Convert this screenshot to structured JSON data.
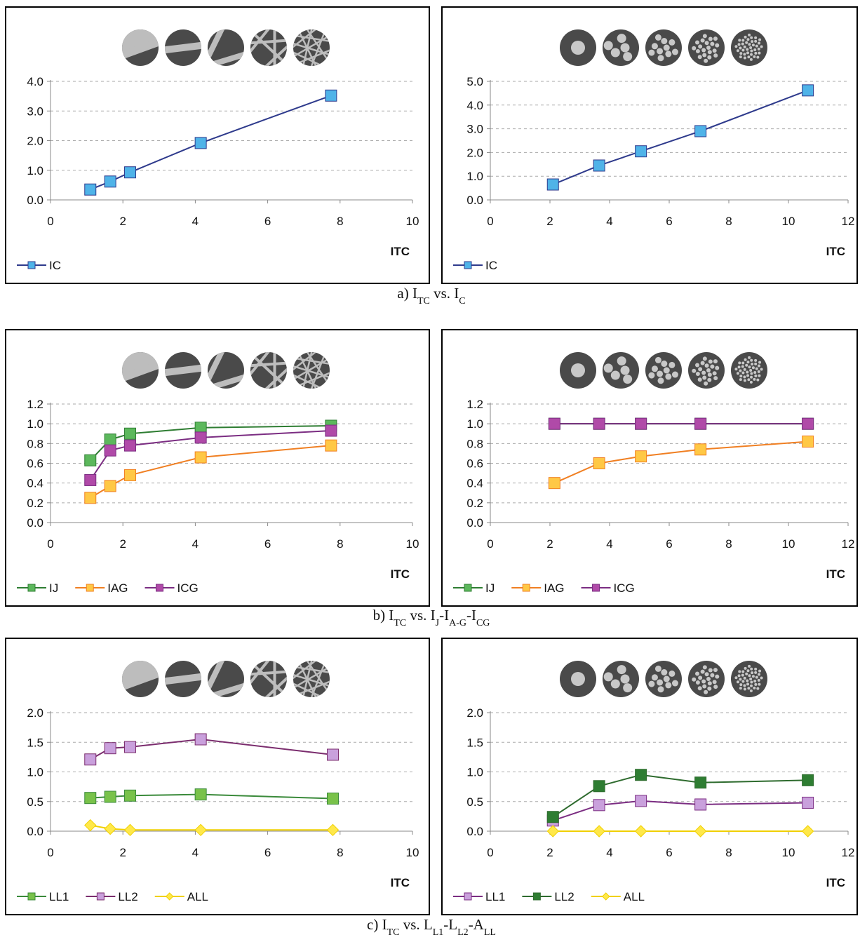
{
  "chart_data": [
    {
      "type": "line",
      "xlabel": "ITC",
      "x": [
        1.1,
        1.65,
        2.2,
        4.15,
        7.75
      ],
      "xlim": [
        0,
        10
      ],
      "xticks": [
        0,
        2,
        4,
        6,
        8,
        10
      ],
      "ylim": [
        0,
        4
      ],
      "yticks": [
        {
          "value": 0,
          "label": "0.0"
        },
        {
          "value": 1,
          "label": "1.0"
        },
        {
          "value": 2,
          "label": "2.0"
        },
        {
          "value": 3,
          "label": "3.0"
        },
        {
          "value": 4,
          "label": "4.0"
        }
      ],
      "grid": true,
      "series": [
        {
          "name": "IC",
          "color": "#2e3a8c",
          "marker_color": "#4fb3e8",
          "marker": "square",
          "values": [
            0.35,
            0.62,
            0.93,
            1.92,
            3.52
          ]
        }
      ]
    },
    {
      "type": "line",
      "xlabel": "ITC",
      "x": [
        2.1,
        3.65,
        5.05,
        7.05,
        10.65
      ],
      "xlim": [
        0,
        12
      ],
      "xticks": [
        0,
        2,
        4,
        6,
        8,
        10,
        12
      ],
      "ylim": [
        0,
        5
      ],
      "yticks": [
        {
          "value": 0,
          "label": "0.0"
        },
        {
          "value": 1,
          "label": "1.0"
        },
        {
          "value": 2,
          "label": "2.0"
        },
        {
          "value": 3,
          "label": "3.0"
        },
        {
          "value": 4,
          "label": "4.0"
        },
        {
          "value": 5,
          "label": "5.0"
        }
      ],
      "grid": true,
      "series": [
        {
          "name": "IC",
          "color": "#2e3a8c",
          "marker_color": "#4fb3e8",
          "marker": "square",
          "values": [
            0.65,
            1.45,
            2.05,
            2.9,
            4.62
          ]
        }
      ]
    },
    {
      "type": "line",
      "xlabel": "ITC",
      "x": [
        1.1,
        1.65,
        2.2,
        4.15,
        7.75
      ],
      "xlim": [
        0,
        10
      ],
      "xticks": [
        0,
        2,
        4,
        6,
        8,
        10
      ],
      "ylim": [
        0,
        1.2
      ],
      "yticks": [
        {
          "value": 0,
          "label": "0.0"
        },
        {
          "value": 0.2,
          "label": "0.2"
        },
        {
          "value": 0.4,
          "label": "0.4"
        },
        {
          "value": 0.6,
          "label": "0.6"
        },
        {
          "value": 0.8,
          "label": "0.8"
        },
        {
          "value": 1,
          "label": "1.0"
        },
        {
          "value": 1.2,
          "label": "1.2"
        }
      ],
      "grid": true,
      "series": [
        {
          "name": "IJ",
          "color": "#2e7d32",
          "marker_color": "#5cb85c",
          "marker": "square",
          "values": [
            0.63,
            0.84,
            0.9,
            0.96,
            0.98
          ]
        },
        {
          "name": "IAG",
          "color": "#f07f22",
          "marker_color": "#ffc845",
          "marker": "square",
          "values": [
            0.25,
            0.37,
            0.48,
            0.66,
            0.78
          ]
        },
        {
          "name": "ICG",
          "color": "#7b2d82",
          "marker_color": "#b04aa8",
          "marker": "square",
          "values": [
            0.43,
            0.73,
            0.78,
            0.86,
            0.93
          ]
        }
      ]
    },
    {
      "type": "line",
      "xlabel": "ITC",
      "x": [
        2.15,
        3.65,
        5.05,
        7.05,
        10.65
      ],
      "xlim": [
        0,
        12
      ],
      "xticks": [
        0,
        2,
        4,
        6,
        8,
        10,
        12
      ],
      "ylim": [
        0,
        1.2
      ],
      "yticks": [
        {
          "value": 0,
          "label": "0.0"
        },
        {
          "value": 0.2,
          "label": "0.2"
        },
        {
          "value": 0.4,
          "label": "0.4"
        },
        {
          "value": 0.6,
          "label": "0.6"
        },
        {
          "value": 0.8,
          "label": "0.8"
        },
        {
          "value": 1,
          "label": "1.0"
        },
        {
          "value": 1.2,
          "label": "1.2"
        }
      ],
      "grid": true,
      "series": [
        {
          "name": "IJ",
          "color": "#2e7d32",
          "marker_color": "#5cb85c",
          "marker": "square",
          "values": [
            1,
            1,
            1,
            1,
            1
          ]
        },
        {
          "name": "IAG",
          "color": "#f07f22",
          "marker_color": "#ffc845",
          "marker": "square",
          "values": [
            0.4,
            0.6,
            0.67,
            0.74,
            0.82
          ]
        },
        {
          "name": "ICG",
          "color": "#7b2d82",
          "marker_color": "#b04aa8",
          "marker": "square",
          "values": [
            1,
            1,
            1,
            1,
            1
          ]
        }
      ]
    },
    {
      "type": "line",
      "xlabel": "ITC",
      "x": [
        1.1,
        1.65,
        2.2,
        4.15,
        7.8
      ],
      "xlim": [
        0,
        10
      ],
      "xticks": [
        0,
        2,
        4,
        6,
        8,
        10
      ],
      "ylim": [
        0,
        2
      ],
      "yticks": [
        {
          "value": 0,
          "label": "0.0"
        },
        {
          "value": 0.5,
          "label": "0.5"
        },
        {
          "value": 1,
          "label": "1.0"
        },
        {
          "value": 1.5,
          "label": "1.5"
        },
        {
          "value": 2,
          "label": "2.0"
        }
      ],
      "grid": true,
      "series": [
        {
          "name": "LL1",
          "color": "#3a8a3a",
          "marker_color": "#79c24a",
          "marker": "square",
          "values": [
            0.56,
            0.58,
            0.6,
            0.62,
            0.55
          ]
        },
        {
          "name": "LL2",
          "color": "#7b2d6e",
          "marker_color": "#c9a0dc",
          "marker": "square",
          "values": [
            1.21,
            1.4,
            1.42,
            1.55,
            1.29
          ]
        },
        {
          "name": "ALL",
          "color": "#f0d000",
          "marker_color": "#ffe84a",
          "marker": "diamond",
          "values": [
            0.1,
            0.04,
            0.02,
            0.02,
            0.02
          ]
        }
      ]
    },
    {
      "type": "line",
      "xlabel": "ITC",
      "x": [
        2.1,
        3.65,
        5.05,
        7.05,
        10.65
      ],
      "xlim": [
        0,
        12
      ],
      "xticks": [
        0,
        2,
        4,
        6,
        8,
        10,
        12
      ],
      "ylim": [
        0,
        2
      ],
      "yticks": [
        {
          "value": 0,
          "label": "0.0"
        },
        {
          "value": 0.5,
          "label": "0.5"
        },
        {
          "value": 1,
          "label": "1.0"
        },
        {
          "value": 1.5,
          "label": "1.5"
        },
        {
          "value": 2,
          "label": "2.0"
        }
      ],
      "grid": true,
      "series": [
        {
          "name": "LL1",
          "color": "#7b2d82",
          "marker_color": "#c9a0dc",
          "marker": "square",
          "values": [
            0.18,
            0.44,
            0.51,
            0.45,
            0.48
          ]
        },
        {
          "name": "LL2",
          "color": "#2e6b2e",
          "marker_color": "#2e7d32",
          "marker": "square",
          "values": [
            0.24,
            0.76,
            0.95,
            0.82,
            0.86
          ]
        },
        {
          "name": "ALL",
          "color": "#f0d000",
          "marker_color": "#ffe84a",
          "marker": "diamond",
          "values": [
            0,
            0,
            0,
            0,
            0
          ]
        }
      ]
    }
  ],
  "captions": [
    {
      "parts": [
        {
          "text": "a) I"
        },
        {
          "text": "TC",
          "sub": true
        },
        {
          "text": " vs. I"
        },
        {
          "text": "C",
          "sub": true
        }
      ]
    },
    {
      "parts": [
        {
          "text": "b) I"
        },
        {
          "text": "TC",
          "sub": true
        },
        {
          "text": " vs. I"
        },
        {
          "text": "J",
          "sub": true
        },
        {
          "text": "-I"
        },
        {
          "text": "A-G",
          "sub": true
        },
        {
          "text": "-I"
        },
        {
          "text": "CG",
          "sub": true
        }
      ]
    },
    {
      "parts": [
        {
          "text": "c) I"
        },
        {
          "text": "TC",
          "sub": true
        },
        {
          "text": " vs. L"
        },
        {
          "text": "L1",
          "sub": true
        },
        {
          "text": "-L"
        },
        {
          "text": "L2",
          "sub": true
        },
        {
          "text": "-A"
        },
        {
          "text": "LL",
          "sub": true
        }
      ]
    }
  ]
}
